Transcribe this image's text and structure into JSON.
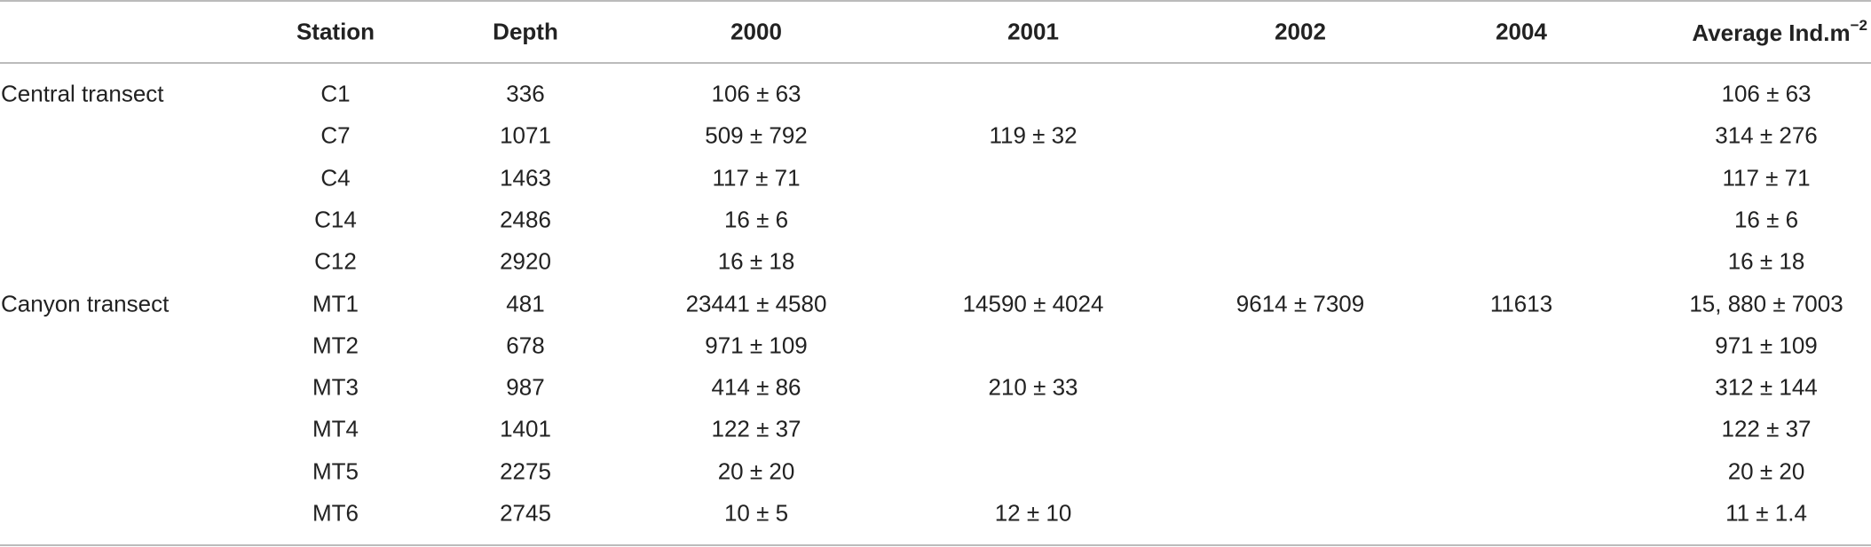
{
  "table": {
    "header": [
      "Station",
      "Depth",
      "2000",
      "2001",
      "2002",
      "2004",
      {
        "text": "Average Ind.m",
        "sup": "−2"
      }
    ],
    "groups": [
      {
        "label": "Central transect",
        "rows": [
          [
            "C1",
            336,
            "106 ± 63",
            null,
            null,
            null,
            "106 ± 63"
          ],
          [
            "C7",
            1071,
            "509 ± 792",
            "119 ± 32",
            null,
            null,
            "314 ± 276"
          ],
          [
            "C4",
            1463,
            "117 ± 71",
            null,
            null,
            null,
            "117 ± 71"
          ],
          [
            "C14",
            2486,
            "16 ± 6",
            null,
            null,
            null,
            "16 ± 6"
          ],
          [
            "C12",
            2920,
            "16 ± 18",
            null,
            null,
            null,
            "16 ± 18"
          ]
        ]
      },
      {
        "label": "Canyon transect",
        "rows": [
          [
            "MT1",
            481,
            "23441 ± 4580",
            "14590 ± 4024",
            "9614 ± 7309",
            "11613",
            "15, 880 ± 7003"
          ],
          [
            "MT2",
            678,
            "971 ± 109",
            null,
            null,
            null,
            "971 ± 109"
          ],
          [
            "MT3",
            987,
            "414 ± 86",
            "210 ± 33",
            null,
            null,
            "312 ± 144"
          ],
          [
            "MT4",
            1401,
            "122 ± 37",
            null,
            null,
            null,
            "122 ± 37"
          ],
          [
            "MT5",
            2275,
            "20 ± 20",
            null,
            null,
            null,
            "20 ± 20"
          ],
          [
            "MT6",
            2745,
            "10 ± 5",
            "12 ± 10",
            null,
            null,
            "11 ± 1.4"
          ]
        ]
      }
    ]
  }
}
